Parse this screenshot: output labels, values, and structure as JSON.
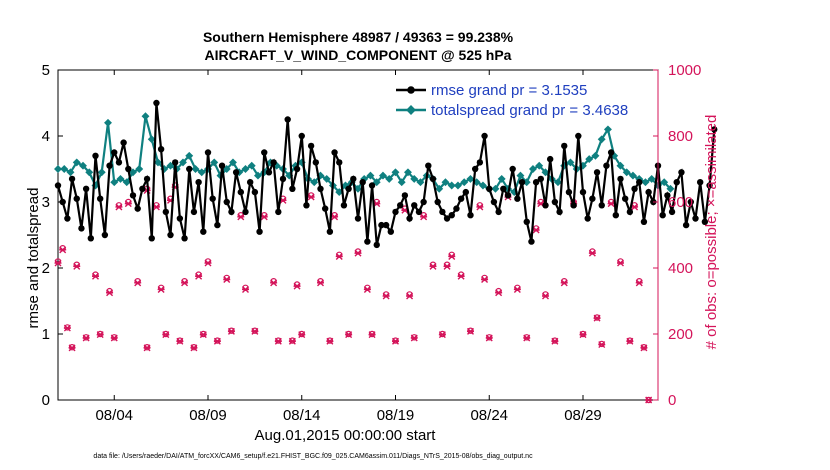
{
  "chart_data": {
    "type": "line",
    "title_line1": "Southern Hemisphere 48987 / 49363 = 99.238%",
    "title_line2": "AIRCRAFT_V_WIND_COMPONENT @ 525 hPa",
    "xlabel": "Aug.01,2015 00:00:00 start",
    "ylabel_left": "rmse and totalspread",
    "ylabel_right": "# of obs: o=possible; ×=assimilated",
    "footer": "data file: /Users/raeder/DAI/ATM_forcXX/CAM6_setup/f.e21.FHIST_BGC.f09_025.CAM6assim.011/Diags_NTrS_2015-08/obs_diag_output.nc",
    "xlim": [
      1,
      33
    ],
    "ylim_left": [
      0,
      5
    ],
    "ylim_right": [
      0,
      1000
    ],
    "x_ticks": [
      {
        "value": 4,
        "label": "08/04"
      },
      {
        "value": 9,
        "label": "08/09"
      },
      {
        "value": 14,
        "label": "08/14"
      },
      {
        "value": 19,
        "label": "08/19"
      },
      {
        "value": 24,
        "label": "08/24"
      },
      {
        "value": 29,
        "label": "08/29"
      }
    ],
    "y_ticks_left": [
      "0",
      "1",
      "2",
      "3",
      "4",
      "5"
    ],
    "y_ticks_right": [
      "0",
      "200",
      "400",
      "600",
      "800",
      "1000"
    ],
    "colors": {
      "rmse": "#000000",
      "spread": "#0f8080",
      "obs": "#d4145a",
      "legend_text": "#1f3fbf"
    },
    "legend": [
      {
        "label": "rmse grand pr = 3.1535"
      },
      {
        "label": "totalspread grand pr = 3.4638"
      }
    ],
    "series": [
      {
        "name": "rmse",
        "axis": "left",
        "x_start": 1.0,
        "x_step": 0.25,
        "values": [
          3.25,
          3.0,
          2.75,
          3.35,
          3.05,
          2.6,
          3.2,
          2.45,
          3.7,
          3.05,
          2.5,
          3.55,
          3.75,
          3.6,
          3.9,
          3.5,
          3.1,
          2.9,
          3.2,
          3.35,
          2.45,
          4.5,
          3.8,
          2.85,
          2.5,
          3.6,
          2.75,
          2.45,
          3.5,
          2.85,
          3.3,
          2.55,
          3.75,
          3.05,
          2.65,
          3.55,
          3.0,
          2.85,
          3.45,
          3.15,
          2.85,
          3.3,
          3.15,
          2.55,
          3.75,
          3.45,
          3.6,
          2.85,
          3.35,
          4.25,
          3.2,
          3.5,
          4.0,
          2.95,
          3.85,
          3.6,
          3.2,
          2.9,
          2.55,
          3.75,
          3.6,
          2.95,
          3.2,
          3.35,
          2.75,
          3.3,
          2.4,
          3.25,
          2.35,
          2.65,
          2.65,
          2.55,
          2.85,
          2.95,
          3.1,
          2.75,
          2.95,
          2.85,
          3.0,
          3.55,
          3.35,
          3.0,
          2.85,
          2.75,
          2.8,
          2.9,
          3.05,
          3.15,
          2.8,
          3.5,
          3.6,
          4.0,
          3.2,
          3.0,
          2.85,
          3.2,
          3.1,
          3.5,
          3.05,
          3.3,
          2.7,
          2.4,
          3.3,
          3.35,
          2.95,
          3.65,
          3.0,
          2.85,
          3.85,
          3.15,
          2.95,
          4.0,
          3.15,
          2.75,
          3.05,
          3.45,
          2.95,
          3.55,
          3.75,
          2.8,
          3.35,
          3.05,
          2.85,
          3.2,
          3.3,
          2.7,
          3.15,
          3.0,
          3.55,
          2.8,
          3.1,
          2.85,
          3.3,
          3.45,
          2.65,
          3.0,
          2.75,
          3.3,
          2.7,
          3.25,
          4.1
        ],
        "marker": "circle"
      },
      {
        "name": "totalspread",
        "axis": "left",
        "x_start": 1.0,
        "x_step": 0.3333,
        "values": [
          3.5,
          3.5,
          3.45,
          3.6,
          3.55,
          3.45,
          3.25,
          3.45,
          4.2,
          3.3,
          3.35,
          3.3,
          3.45,
          3.5,
          4.3,
          3.95,
          3.6,
          3.5,
          3.55,
          3.5,
          3.6,
          3.7,
          3.5,
          3.45,
          3.5,
          3.6,
          3.4,
          3.5,
          3.6,
          3.45,
          3.5,
          3.55,
          3.4,
          3.45,
          3.6,
          3.55,
          3.5,
          3.4,
          3.55,
          3.6,
          3.35,
          3.3,
          3.4,
          3.35,
          3.25,
          3.15,
          3.25,
          3.3,
          3.2,
          3.35,
          3.4,
          3.3,
          3.4,
          3.35,
          3.45,
          3.3,
          3.45,
          3.35,
          3.3,
          3.4,
          3.35,
          3.2,
          3.3,
          3.25,
          3.25,
          3.3,
          3.35,
          3.3,
          3.25,
          3.2,
          3.2,
          3.35,
          3.2,
          3.15,
          3.4,
          3.3,
          3.5,
          3.55,
          3.45,
          3.35,
          3.3,
          3.55,
          3.6,
          3.5,
          3.55,
          3.65,
          3.7,
          3.95,
          4.1,
          3.7,
          3.55,
          3.45,
          3.4,
          3.35,
          3.3,
          3.35,
          3.25,
          3.3,
          3.2
        ]
      },
      {
        "name": "obs_possible",
        "axis": "right",
        "marker": "o",
        "points": [
          [
            1.0,
            420
          ],
          [
            1.25,
            460
          ],
          [
            1.5,
            220
          ],
          [
            1.75,
            160
          ],
          [
            2.0,
            410
          ],
          [
            2.5,
            190
          ],
          [
            3.0,
            380
          ],
          [
            3.25,
            200
          ],
          [
            3.75,
            330
          ],
          [
            4.0,
            190
          ],
          [
            4.25,
            590
          ],
          [
            4.75,
            600
          ],
          [
            5.25,
            360
          ],
          [
            5.75,
            160
          ],
          [
            5.75,
            640
          ],
          [
            6.25,
            590
          ],
          [
            6.5,
            340
          ],
          [
            6.75,
            200
          ],
          [
            7.0,
            610
          ],
          [
            7.25,
            650
          ],
          [
            7.5,
            180
          ],
          [
            7.75,
            360
          ],
          [
            8.25,
            160
          ],
          [
            8.5,
            380
          ],
          [
            8.75,
            200
          ],
          [
            9.0,
            420
          ],
          [
            9.5,
            180
          ],
          [
            10.0,
            370
          ],
          [
            10.25,
            210
          ],
          [
            10.75,
            560
          ],
          [
            11.0,
            340
          ],
          [
            11.5,
            210
          ],
          [
            12.0,
            560
          ],
          [
            12.5,
            360
          ],
          [
            12.75,
            180
          ],
          [
            13.0,
            610
          ],
          [
            13.5,
            180
          ],
          [
            13.75,
            350
          ],
          [
            14.0,
            200
          ],
          [
            14.5,
            620
          ],
          [
            15.0,
            360
          ],
          [
            15.5,
            180
          ],
          [
            15.75,
            560
          ],
          [
            16.0,
            440
          ],
          [
            16.5,
            200
          ],
          [
            17.0,
            450
          ],
          [
            17.5,
            340
          ],
          [
            17.75,
            200
          ],
          [
            18.0,
            600
          ],
          [
            18.5,
            320
          ],
          [
            19.0,
            180
          ],
          [
            19.5,
            580
          ],
          [
            19.75,
            320
          ],
          [
            20.0,
            190
          ],
          [
            20.5,
            560
          ],
          [
            21.0,
            410
          ],
          [
            21.5,
            200
          ],
          [
            21.75,
            410
          ],
          [
            22.0,
            440
          ],
          [
            22.5,
            380
          ],
          [
            23.0,
            210
          ],
          [
            23.5,
            590
          ],
          [
            23.75,
            370
          ],
          [
            24.0,
            190
          ],
          [
            24.5,
            330
          ],
          [
            25.0,
            620
          ],
          [
            25.5,
            340
          ],
          [
            26.0,
            190
          ],
          [
            26.5,
            520
          ],
          [
            26.75,
            600
          ],
          [
            27.0,
            320
          ],
          [
            27.5,
            180
          ],
          [
            28.0,
            360
          ],
          [
            28.5,
            600
          ],
          [
            29.0,
            200
          ],
          [
            29.5,
            450
          ],
          [
            29.75,
            250
          ],
          [
            30.0,
            170
          ],
          [
            30.5,
            600
          ],
          [
            31.0,
            420
          ],
          [
            31.5,
            180
          ],
          [
            31.75,
            590
          ],
          [
            32.0,
            360
          ],
          [
            32.25,
            160
          ],
          [
            32.5,
            0
          ]
        ]
      },
      {
        "name": "obs_assimilated",
        "axis": "right",
        "marker": "x",
        "points": [
          [
            1.0,
            415
          ],
          [
            1.25,
            455
          ],
          [
            1.5,
            218
          ],
          [
            1.75,
            158
          ],
          [
            2.0,
            405
          ],
          [
            2.5,
            188
          ],
          [
            3.0,
            375
          ],
          [
            3.25,
            198
          ],
          [
            3.75,
            325
          ],
          [
            4.0,
            188
          ],
          [
            4.25,
            585
          ],
          [
            4.75,
            595
          ],
          [
            5.25,
            355
          ],
          [
            5.75,
            158
          ],
          [
            5.75,
            635
          ],
          [
            6.25,
            585
          ],
          [
            6.5,
            335
          ],
          [
            6.75,
            198
          ],
          [
            7.0,
            605
          ],
          [
            7.25,
            645
          ],
          [
            7.5,
            178
          ],
          [
            7.75,
            355
          ],
          [
            8.25,
            158
          ],
          [
            8.5,
            375
          ],
          [
            8.75,
            198
          ],
          [
            9.0,
            415
          ],
          [
            9.5,
            178
          ],
          [
            10.0,
            365
          ],
          [
            10.25,
            208
          ],
          [
            10.75,
            555
          ],
          [
            11.0,
            335
          ],
          [
            11.5,
            208
          ],
          [
            12.0,
            555
          ],
          [
            12.5,
            355
          ],
          [
            12.75,
            178
          ],
          [
            13.0,
            605
          ],
          [
            13.5,
            178
          ],
          [
            13.75,
            345
          ],
          [
            14.0,
            198
          ],
          [
            14.5,
            615
          ],
          [
            15.0,
            355
          ],
          [
            15.5,
            178
          ],
          [
            15.75,
            555
          ],
          [
            16.0,
            435
          ],
          [
            16.5,
            198
          ],
          [
            17.0,
            445
          ],
          [
            17.5,
            335
          ],
          [
            17.75,
            198
          ],
          [
            18.0,
            595
          ],
          [
            18.5,
            315
          ],
          [
            19.0,
            178
          ],
          [
            19.5,
            575
          ],
          [
            19.75,
            315
          ],
          [
            20.0,
            188
          ],
          [
            20.5,
            555
          ],
          [
            21.0,
            405
          ],
          [
            21.5,
            198
          ],
          [
            21.75,
            405
          ],
          [
            22.0,
            435
          ],
          [
            22.5,
            375
          ],
          [
            23.0,
            208
          ],
          [
            23.5,
            585
          ],
          [
            23.75,
            365
          ],
          [
            24.0,
            188
          ],
          [
            24.5,
            325
          ],
          [
            25.0,
            615
          ],
          [
            25.5,
            335
          ],
          [
            26.0,
            188
          ],
          [
            26.5,
            515
          ],
          [
            26.75,
            595
          ],
          [
            27.0,
            315
          ],
          [
            27.5,
            178
          ],
          [
            28.0,
            355
          ],
          [
            28.5,
            595
          ],
          [
            29.0,
            198
          ],
          [
            29.5,
            445
          ],
          [
            29.75,
            248
          ],
          [
            30.0,
            168
          ],
          [
            30.5,
            595
          ],
          [
            31.0,
            415
          ],
          [
            31.5,
            178
          ],
          [
            31.75,
            585
          ],
          [
            32.0,
            355
          ],
          [
            32.25,
            158
          ],
          [
            32.5,
            0
          ]
        ]
      }
    ]
  }
}
